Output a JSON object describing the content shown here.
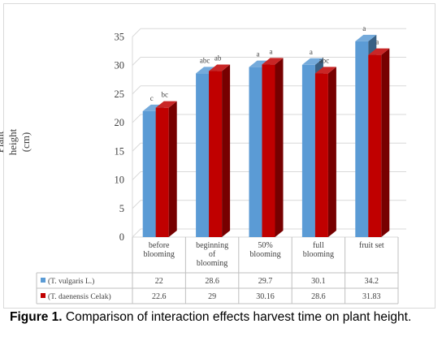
{
  "chart_data": {
    "type": "bar",
    "ylabel_line1": "Plant height",
    "ylabel_line2": "(cm)",
    "ylim": [
      0,
      35
    ],
    "yticks": [
      "0",
      "5",
      "10",
      "15",
      "20",
      "25",
      "30",
      "35"
    ],
    "categories": [
      [
        "before",
        "blooming"
      ],
      [
        "beginning",
        "of",
        "blooming"
      ],
      [
        "50%",
        "blooming"
      ],
      [
        "full",
        "blooming"
      ],
      [
        "fruit set"
      ]
    ],
    "series": [
      {
        "name": "(T. vulgaris L.)",
        "color": "#5b9bd5",
        "values": [
          22,
          28.6,
          29.7,
          30.1,
          34.2
        ],
        "table_values": [
          "22",
          "28.6",
          "29.7",
          "30.1",
          "34.2"
        ],
        "letters": [
          "c",
          "abc",
          "a",
          "a",
          "a"
        ]
      },
      {
        "name": "(T. daenensis  Celak)",
        "color": "#c00000",
        "values": [
          22.6,
          29,
          30.16,
          28.6,
          31.83
        ],
        "table_values": [
          "22.6",
          "29",
          "30.16",
          "28.6",
          "31.83"
        ],
        "letters": [
          "bc",
          "ab",
          "a",
          "abc",
          "a"
        ]
      }
    ],
    "grid": true,
    "legend": "data-table"
  },
  "caption": {
    "label": "Figure 1.",
    "text": " Comparison of interaction effects harvest time on plant height."
  }
}
